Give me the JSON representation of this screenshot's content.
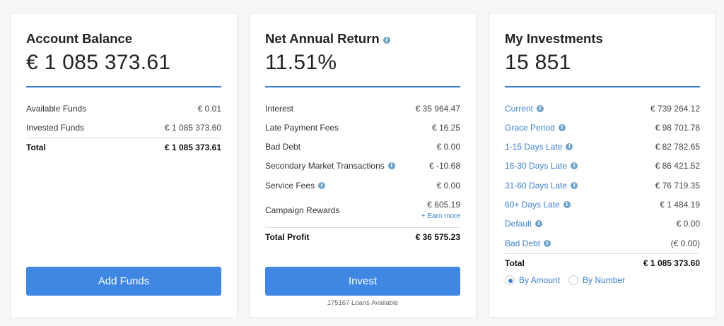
{
  "account": {
    "title": "Account Balance",
    "amount": "€ 1 085 373.61",
    "rows": [
      {
        "label": "Available Funds",
        "value": "€ 0.01"
      },
      {
        "label": "Invested Funds",
        "value": "€ 1 085 373.60"
      }
    ],
    "total": {
      "label": "Total",
      "value": "€ 1 085 373.61"
    },
    "button": "Add Funds"
  },
  "returns": {
    "title": "Net Annual Return",
    "amount": "11.51%",
    "rows": [
      {
        "label": "Interest",
        "value": "€ 35 964.47"
      },
      {
        "label": "Late Payment Fees",
        "value": "€ 16.25"
      },
      {
        "label": "Bad Debt",
        "value": "€ 0.00"
      },
      {
        "label": "Secondary Market Transactions",
        "value": "€ -10.68"
      },
      {
        "label": "Service Fees",
        "value": "€ 0.00"
      },
      {
        "label": "Campaign Rewards",
        "value": "€ 605.19"
      }
    ],
    "earn_more": "+ Earn more",
    "total": {
      "label": "Total Profit",
      "value": "€ 36 575.23"
    },
    "button": "Invest",
    "loans_available": "175167 Loans Available"
  },
  "investments": {
    "title": "My Investments",
    "amount": "15 851",
    "rows": [
      {
        "label": "Current",
        "value": "€ 739 264.12"
      },
      {
        "label": "Grace Period",
        "value": "€ 98 701.78"
      },
      {
        "label": "1-15 Days Late",
        "value": "€ 82 782.65"
      },
      {
        "label": "16-30 Days Late",
        "value": "€ 86 421.52"
      },
      {
        "label": "31-60 Days Late",
        "value": "€ 76 719.35"
      },
      {
        "label": "60+ Days Late",
        "value": "€ 1 484.19"
      },
      {
        "label": "Default",
        "value": "€ 0.00"
      },
      {
        "label": "Bad Debt",
        "value": "(€ 0.00)"
      }
    ],
    "total": {
      "label": "Total",
      "value": "€ 1 085 373.60"
    },
    "radio_amount": "By Amount",
    "radio_number": "By Number"
  },
  "icons": {
    "info": "i"
  },
  "colors": {
    "accent": "#3d80cf",
    "button": "#3f87e3"
  }
}
